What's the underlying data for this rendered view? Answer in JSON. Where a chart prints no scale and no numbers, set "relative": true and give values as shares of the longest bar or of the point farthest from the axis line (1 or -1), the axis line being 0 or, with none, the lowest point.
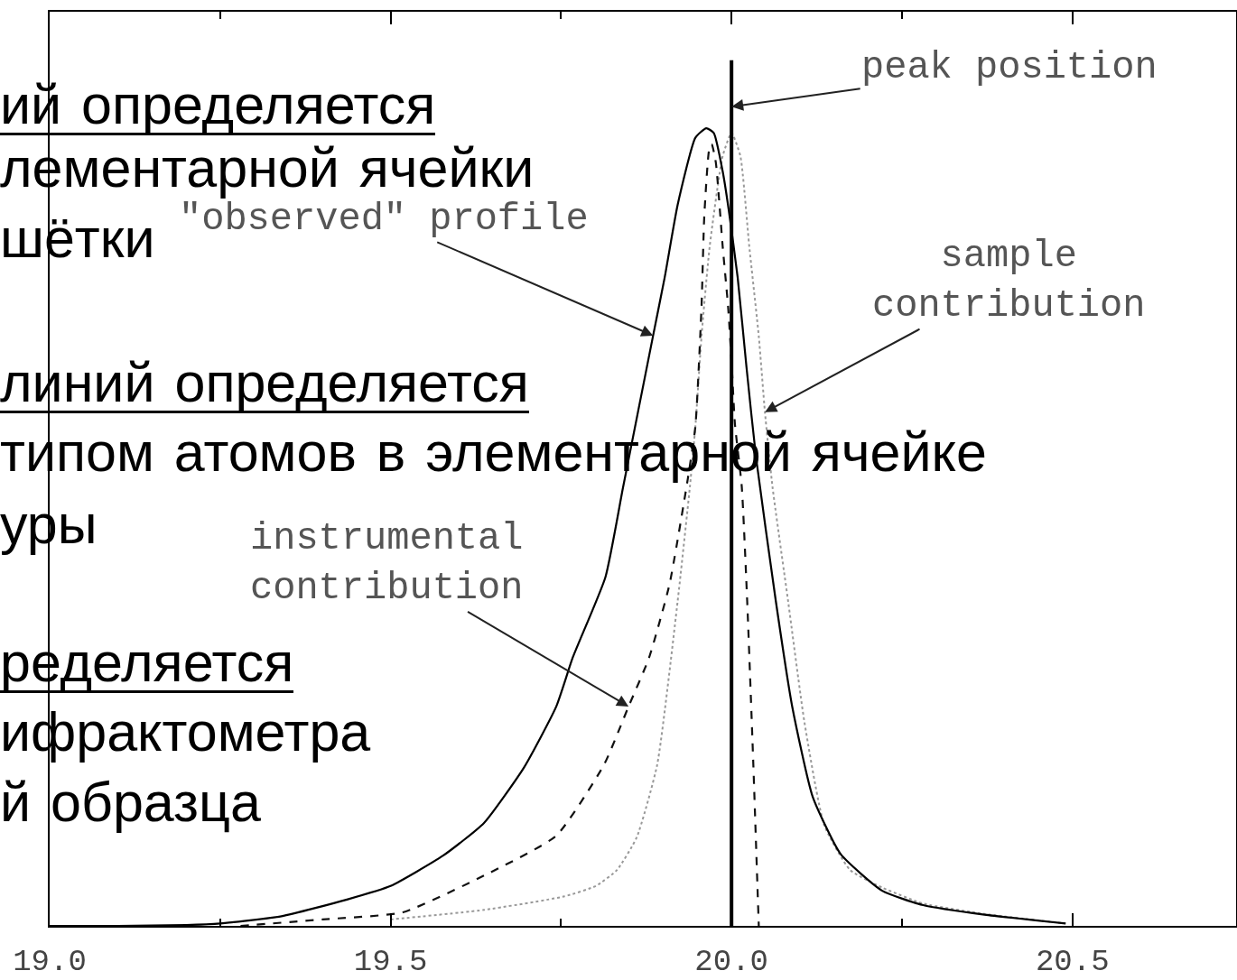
{
  "chart_data": {
    "type": "line",
    "relative": true,
    "xlim": [
      19.0,
      20.74
    ],
    "xticks": [
      {
        "value": 19.0,
        "label": "19.0"
      },
      {
        "value": 19.25,
        "label": null
      },
      {
        "value": 19.5,
        "label": "19.5"
      },
      {
        "value": 19.75,
        "label": null
      },
      {
        "value": 20.0,
        "label": "20.0"
      },
      {
        "value": 20.25,
        "label": null
      },
      {
        "value": 20.5,
        "label": "20.5"
      }
    ],
    "series": [
      {
        "color": "#999999",
        "line_style": "dotted",
        "x": [
          19.5,
          19.637,
          19.755,
          19.801,
          19.832,
          19.861,
          19.891,
          19.921,
          19.939,
          19.947,
          19.956,
          19.968,
          19.987,
          20.0,
          20.013,
          20.026,
          20.04,
          20.049,
          20.06,
          20.083,
          20.107,
          20.136,
          20.174,
          20.221,
          20.281,
          20.371,
          20.49
        ],
        "values": [
          0.008,
          0.02,
          0.037,
          0.05,
          0.07,
          0.111,
          0.202,
          0.407,
          0.551,
          0.626,
          0.739,
          0.852,
          0.965,
          0.994,
          0.965,
          0.852,
          0.739,
          0.644,
          0.551,
          0.407,
          0.255,
          0.126,
          0.07,
          0.048,
          0.028,
          0.015,
          0.003
        ]
      },
      {
        "color": "#111111",
        "line_style": "dashed",
        "x": [
          19.28,
          19.4,
          19.518,
          19.637,
          19.743,
          19.813,
          19.849,
          19.879,
          19.909,
          19.936,
          19.947,
          19.956,
          19.96,
          19.967,
          19.971,
          19.977,
          19.987,
          19.995,
          20.0,
          20.005,
          20.015,
          20.023,
          20.032,
          20.038,
          20.04
        ],
        "values": [
          0,
          0.008,
          0.017,
          0.063,
          0.113,
          0.202,
          0.275,
          0.336,
          0.428,
          0.561,
          0.626,
          0.776,
          0.889,
          0.972,
          0.98,
          0.957,
          0.852,
          0.776,
          0.708,
          0.629,
          0.551,
          0.407,
          0.202,
          0.05,
          0
        ]
      },
      {
        "color": "#000000",
        "line_style": "solid",
        "x": [
          19.0,
          19.1,
          19.2,
          19.25,
          19.34,
          19.436,
          19.5,
          19.577,
          19.637,
          19.696,
          19.743,
          19.767,
          19.815,
          19.841,
          19.885,
          19.902,
          19.921,
          19.947,
          19.963,
          19.974,
          19.987,
          19.996,
          20.009,
          20.022,
          20.036,
          20.065,
          20.089,
          20.119,
          20.16,
          20.221,
          20.281,
          20.371,
          20.49
        ],
        "values": [
          0,
          0,
          0.001,
          0.003,
          0.012,
          0.033,
          0.05,
          0.088,
          0.129,
          0.199,
          0.275,
          0.336,
          0.437,
          0.55,
          0.74,
          0.813,
          0.904,
          0.988,
          1.0,
          0.994,
          0.946,
          0.897,
          0.813,
          0.7,
          0.587,
          0.407,
          0.275,
          0.162,
          0.09,
          0.044,
          0.026,
          0.014,
          0.003
        ]
      }
    ],
    "ref_lines": [
      {
        "axis": "x",
        "value": 20.0,
        "color": "#000000"
      }
    ],
    "annotations": [
      "ий определяется",
      "лементарной ячейки",
      "шётки",
      "линий определяется",
      "типом атомов в элементарной ячейке",
      "уры",
      "ределяется",
      "ифрактометра",
      "й образца",
      {
        "text": "peak position",
        "x": 20.0,
        "y": 1.027
      },
      {
        "text": "\"observed\" profile",
        "x": 19.885,
        "y": 0.74
      },
      {
        "text": "sample\ncontribution",
        "x": 20.049,
        "y": 0.644
      },
      {
        "text": "instrumental\ncontribution",
        "x": 19.849,
        "y": 0.275
      }
    ]
  }
}
